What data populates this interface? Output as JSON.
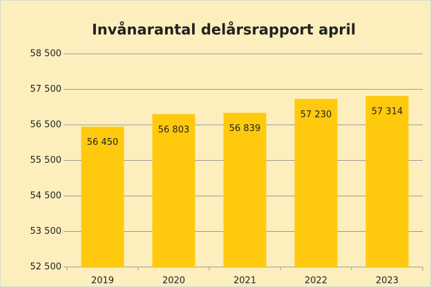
{
  "chart_data": {
    "type": "bar",
    "title": "Invånarantal delårsrapport april",
    "categories": [
      "2019",
      "2020",
      "2021",
      "2022",
      "2023"
    ],
    "values": [
      56450,
      56803,
      56839,
      57230,
      57314
    ],
    "value_labels": [
      "56 450",
      "56 803",
      "56 839",
      "57 230",
      "57 314"
    ],
    "color": "#ffc90e",
    "ylim": [
      52500,
      58500
    ],
    "yticks": [
      {
        "value": 52500,
        "label": "52 500"
      },
      {
        "value": 53500,
        "label": "53 500"
      },
      {
        "value": 54500,
        "label": "54 500"
      },
      {
        "value": 55500,
        "label": "55 500"
      },
      {
        "value": 56500,
        "label": "56 500"
      },
      {
        "value": 57500,
        "label": "57 500"
      },
      {
        "value": 58500,
        "label": "58 500"
      }
    ],
    "grid": true
  }
}
